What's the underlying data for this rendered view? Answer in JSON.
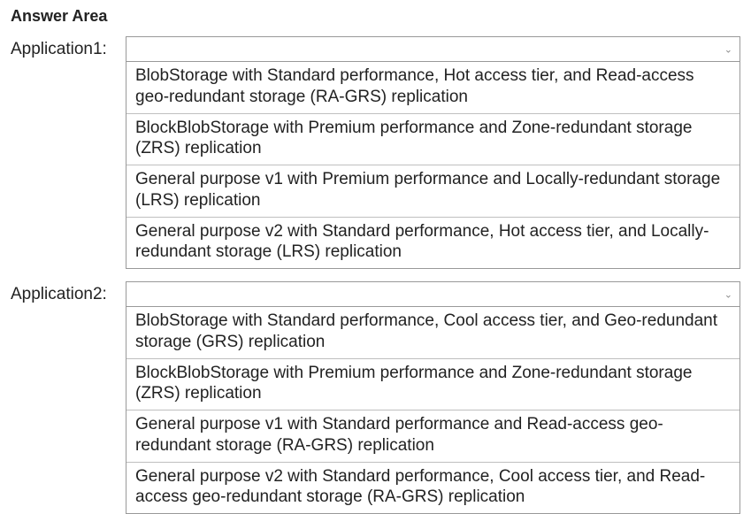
{
  "header": {
    "title": "Answer Area"
  },
  "app1": {
    "label": "Application1:",
    "options": [
      "BlobStorage with Standard performance, Hot access tier, and Read-access geo-redundant storage (RA-GRS) replication",
      "BlockBlobStorage with Premium performance and Zone-redundant storage (ZRS) replication",
      "General purpose v1 with Premium performance and Locally-redundant storage (LRS) replication",
      "General purpose v2 with Standard performance, Hot access tier, and Locally-redundant storage (LRS) replication"
    ]
  },
  "app2": {
    "label": "Application2:",
    "options": [
      "BlobStorage with Standard performance, Cool access tier, and Geo-redundant storage (GRS) replication",
      "BlockBlobStorage with Premium performance and Zone-redundant storage (ZRS) replication",
      "General purpose v1 with Standard performance and Read-access geo-redundant storage (RA-GRS) replication",
      "General purpose v2 with Standard performance, Cool access tier, and Read-access geo-redundant storage (RA-GRS) replication"
    ]
  },
  "colors": {
    "border": "#999999",
    "text": "#222222",
    "background": "#ffffff"
  }
}
